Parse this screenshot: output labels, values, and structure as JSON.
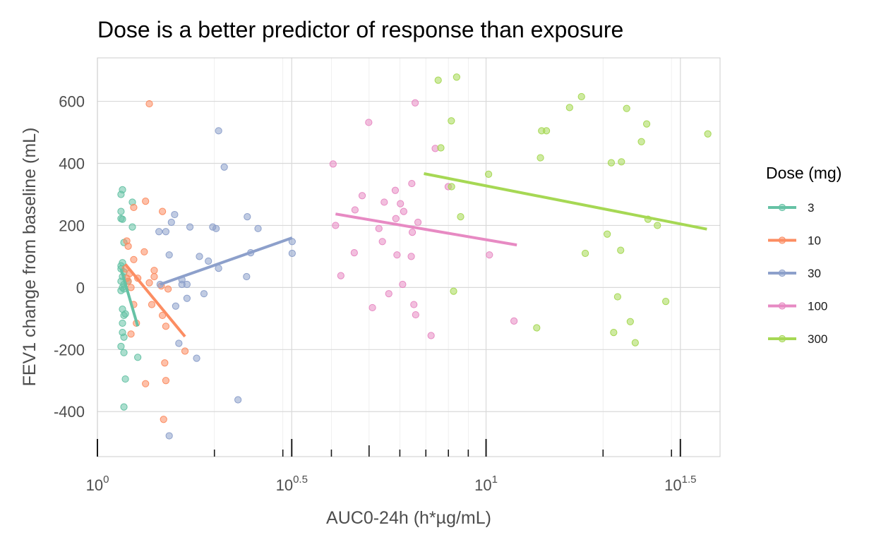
{
  "chart_data": {
    "type": "scatter",
    "title": "Dose is a better predictor of response than exposure",
    "xlabel": "AUC0-24h (h*µg/mL)",
    "ylabel": "FEV1 change from baseline (mL)",
    "x_scale": "log10",
    "xlim": [
      1.0,
      40.0
    ],
    "ylim": [
      -545,
      740
    ],
    "x_major_ticks": [
      {
        "value": 1.0,
        "base": "10",
        "exp": "0"
      },
      {
        "value": 3.1623,
        "base": "10",
        "exp": "0.5"
      },
      {
        "value": 10.0,
        "base": "10",
        "exp": "1"
      },
      {
        "value": 31.623,
        "base": "10",
        "exp": "1.5"
      }
    ],
    "x_minor_ticks": [
      2,
      3,
      4,
      5,
      6,
      7,
      8,
      9,
      20,
      30
    ],
    "y_ticks": [
      -400,
      -200,
      0,
      200,
      400,
      600
    ],
    "grid": true,
    "legend": {
      "title": "Dose (mg)",
      "position": "right"
    },
    "series": [
      {
        "name": "3",
        "color": "#66c2a5",
        "points": [
          [
            1.15,
            300
          ],
          [
            1.16,
            315
          ],
          [
            1.15,
            245
          ],
          [
            1.15,
            222
          ],
          [
            1.16,
            220
          ],
          [
            1.15,
            70
          ],
          [
            1.16,
            80
          ],
          [
            1.15,
            60
          ],
          [
            1.17,
            50
          ],
          [
            1.16,
            35
          ],
          [
            1.15,
            20
          ],
          [
            1.17,
            10
          ],
          [
            1.16,
            0
          ],
          [
            1.15,
            -10
          ],
          [
            1.17,
            -5
          ],
          [
            1.16,
            -70
          ],
          [
            1.18,
            -85
          ],
          [
            1.17,
            -90
          ],
          [
            1.16,
            -115
          ],
          [
            1.16,
            -145
          ],
          [
            1.17,
            -160
          ],
          [
            1.15,
            -190
          ],
          [
            1.17,
            -210
          ],
          [
            1.18,
            -295
          ],
          [
            1.17,
            -385
          ],
          [
            1.23,
            275
          ],
          [
            1.23,
            195
          ],
          [
            1.17,
            145
          ],
          [
            1.27,
            -225
          ],
          [
            1.2,
            20
          ]
        ],
        "fit": [
          [
            1.15,
            60
          ],
          [
            1.27,
            -125
          ]
        ]
      },
      {
        "name": "10",
        "color": "#fc8d62",
        "points": [
          [
            1.36,
            592
          ],
          [
            1.33,
            278
          ],
          [
            1.24,
            258
          ],
          [
            1.19,
            150
          ],
          [
            1.2,
            133
          ],
          [
            1.32,
            115
          ],
          [
            1.24,
            90
          ],
          [
            1.18,
            60
          ],
          [
            1.21,
            45
          ],
          [
            1.19,
            30
          ],
          [
            1.2,
            20
          ],
          [
            1.22,
            0
          ],
          [
            1.27,
            30
          ],
          [
            1.36,
            15
          ],
          [
            1.4,
            55
          ],
          [
            1.4,
            35
          ],
          [
            1.46,
            5
          ],
          [
            1.52,
            -5
          ],
          [
            1.24,
            -55
          ],
          [
            1.38,
            -55
          ],
          [
            1.47,
            -90
          ],
          [
            1.26,
            -115
          ],
          [
            1.5,
            -125
          ],
          [
            1.68,
            -205
          ],
          [
            1.49,
            -243
          ],
          [
            1.33,
            -310
          ],
          [
            1.5,
            -300
          ],
          [
            1.48,
            -425
          ],
          [
            1.47,
            245
          ],
          [
            1.22,
            -150
          ]
        ],
        "fit": [
          [
            1.18,
            75
          ],
          [
            1.68,
            -158
          ]
        ]
      },
      {
        "name": "30",
        "color": "#8da0cb",
        "points": [
          [
            1.44,
            180
          ],
          [
            1.5,
            180
          ],
          [
            1.55,
            210
          ],
          [
            1.58,
            235
          ],
          [
            1.53,
            105
          ],
          [
            1.73,
            195
          ],
          [
            1.98,
            195
          ],
          [
            2.02,
            190
          ],
          [
            2.43,
            228
          ],
          [
            2.59,
            190
          ],
          [
            1.93,
            85
          ],
          [
            1.83,
            100
          ],
          [
            2.05,
            62
          ],
          [
            2.42,
            35
          ],
          [
            2.48,
            112
          ],
          [
            1.65,
            25
          ],
          [
            1.65,
            10
          ],
          [
            1.7,
            10
          ],
          [
            1.59,
            -60
          ],
          [
            1.7,
            -35
          ],
          [
            1.88,
            -20
          ],
          [
            2.05,
            505
          ],
          [
            2.12,
            388
          ],
          [
            2.3,
            -362
          ],
          [
            1.62,
            -180
          ],
          [
            1.8,
            -228
          ],
          [
            1.53,
            -478
          ],
          [
            3.17,
            148
          ],
          [
            3.17,
            110
          ],
          [
            1.45,
            10
          ]
        ],
        "fit": [
          [
            1.45,
            10
          ],
          [
            3.17,
            160
          ]
        ]
      },
      {
        "name": "100",
        "color": "#e78ac3",
        "points": [
          [
            4.04,
            398
          ],
          [
            4.1,
            200
          ],
          [
            4.23,
            38
          ],
          [
            4.99,
            532
          ],
          [
            4.8,
            296
          ],
          [
            4.6,
            250
          ],
          [
            4.58,
            112
          ],
          [
            5.3,
            190
          ],
          [
            5.47,
            275
          ],
          [
            5.84,
            313
          ],
          [
            6.14,
            245
          ],
          [
            5.86,
            222
          ],
          [
            6.02,
            270
          ],
          [
            6.44,
            335
          ],
          [
            6.68,
            210
          ],
          [
            5.41,
            148
          ],
          [
            6.46,
            178
          ],
          [
            6.42,
            100
          ],
          [
            5.9,
            105
          ],
          [
            6.1,
            10
          ],
          [
            5.62,
            -20
          ],
          [
            5.1,
            -65
          ],
          [
            6.52,
            -55
          ],
          [
            6.59,
            -88
          ],
          [
            7.22,
            -155
          ],
          [
            6.57,
            595
          ],
          [
            7.4,
            448
          ],
          [
            7.99,
            325
          ],
          [
            10.2,
            105
          ],
          [
            11.8,
            -108
          ]
        ],
        "fit": [
          [
            4.1,
            237
          ],
          [
            12.0,
            137
          ]
        ]
      },
      {
        "name": "300",
        "color": "#a6d854",
        "points": [
          [
            7.53,
            668
          ],
          [
            8.4,
            678
          ],
          [
            8.14,
            537
          ],
          [
            7.65,
            450
          ],
          [
            10.15,
            365
          ],
          [
            8.6,
            228
          ],
          [
            8.25,
            -12
          ],
          [
            13.8,
            418
          ],
          [
            13.9,
            505
          ],
          [
            14.3,
            505
          ],
          [
            16.4,
            580
          ],
          [
            17.6,
            615
          ],
          [
            21.0,
            402
          ],
          [
            22.3,
            405
          ],
          [
            23.0,
            577
          ],
          [
            25.1,
            470
          ],
          [
            25.9,
            527
          ],
          [
            26.1,
            220
          ],
          [
            27.6,
            200
          ],
          [
            20.5,
            172
          ],
          [
            22.2,
            120
          ],
          [
            18.0,
            110
          ],
          [
            21.8,
            -30
          ],
          [
            29.0,
            -45
          ],
          [
            23.5,
            -110
          ],
          [
            24.2,
            -178
          ],
          [
            13.5,
            -130
          ],
          [
            21.3,
            -145
          ],
          [
            37.2,
            495
          ],
          [
            8.15,
            325
          ]
        ],
        "fit": [
          [
            6.92,
            367
          ],
          [
            37.0,
            188
          ]
        ]
      }
    ]
  }
}
